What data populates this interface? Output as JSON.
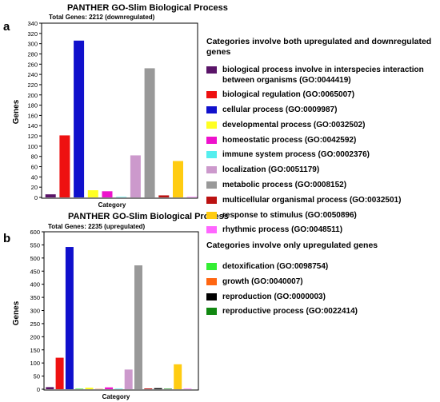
{
  "panel_labels": [
    "a",
    "b"
  ],
  "legend_a": {
    "title": "Categories involve both upregulated and downregulated genes",
    "items": [
      {
        "label": "biological process involve in interspecies interaction between organisms (GO:0044419)",
        "color": "#5a1468"
      },
      {
        "label": "biological regulation (GO:0065007)",
        "color": "#ee1111"
      },
      {
        "label": "cellular process (GO:0009987)",
        "color": "#1010cc"
      },
      {
        "label": "developmental process (GO:0032502)",
        "color": "#ffff22"
      },
      {
        "label": "homeostatic process (GO:0042592)",
        "color": "#ee11cc"
      },
      {
        "label": "immune system process (GO:0002376)",
        "color": "#55eeee"
      },
      {
        "label": "localization (GO:0051179)",
        "color": "#cc99cc"
      },
      {
        "label": "metabolic process (GO:0008152)",
        "color": "#999999"
      },
      {
        "label": "multicellular organismal process (GO:0032501)",
        "color": "#bb1111"
      },
      {
        "label": "response to stimulus (GO:0050896)",
        "color": "#ffcc11"
      },
      {
        "label": "rhythmic process (GO:0048511)",
        "color": "#ff66ff"
      }
    ]
  },
  "legend_b": {
    "title": "Categories involve only upregulated genes",
    "items": [
      {
        "label": "detoxification (GO:0098754)",
        "color": "#33ee33"
      },
      {
        "label": "growth (GO:0040007)",
        "color": "#ff6611"
      },
      {
        "label": "reproduction (GO:0000003)",
        "color": "#000000"
      },
      {
        "label": "reproductive process (GO:0022414)",
        "color": "#118811"
      }
    ]
  },
  "chart_data": [
    {
      "type": "bar",
      "title": "PANTHER GO-Slim Biological Process",
      "subtitle": "Total Genes: 2212 (downregulated)",
      "xlabel": "Category",
      "ylabel": "Genes",
      "ylim": [
        0,
        340
      ],
      "yticks": [
        0,
        20,
        40,
        60,
        80,
        100,
        120,
        140,
        160,
        180,
        200,
        220,
        240,
        260,
        280,
        300,
        320,
        340
      ],
      "legend": "right",
      "categories": [
        "biological process involve in interspecies interaction between organisms (GO:0044419)",
        "biological regulation (GO:0065007)",
        "cellular process (GO:0009987)",
        "developmental process (GO:0032502)",
        "homeostatic process (GO:0042592)",
        "immune system process (GO:0002376)",
        "localization (GO:0051179)",
        "metabolic process (GO:0008152)",
        "multicellular organismal process (GO:0032501)",
        "response to stimulus (GO:0050896)",
        "rhythmic process (GO:0048511)"
      ],
      "values": [
        6,
        121,
        306,
        14,
        12,
        1,
        82,
        252,
        4,
        71,
        1
      ],
      "colors": [
        "#5a1468",
        "#ee1111",
        "#1010cc",
        "#ffff22",
        "#ee11cc",
        "#55eeee",
        "#cc99cc",
        "#999999",
        "#bb1111",
        "#ffcc11",
        "#ff66ff"
      ]
    },
    {
      "type": "bar",
      "title": "PANTHER GO-Slim Biological Process",
      "subtitle": "Total Genes: 2235 (upregulated)",
      "xlabel": "Category",
      "ylabel": "Genes",
      "ylim": [
        0,
        600
      ],
      "yticks": [
        0,
        50,
        100,
        150,
        200,
        250,
        300,
        350,
        400,
        450,
        500,
        550,
        600
      ],
      "legend": "right",
      "categories": [
        "biological process involve in interspecies interaction between organisms (GO:0044419)",
        "biological regulation (GO:0065007)",
        "cellular process (GO:0009987)",
        "detoxification (GO:0098754)",
        "developmental process (GO:0032502)",
        "growth (GO:0040007)",
        "homeostatic process (GO:0042592)",
        "immune system process (GO:0002376)",
        "localization (GO:0051179)",
        "metabolic process (GO:0008152)",
        "multicellular organismal process (GO:0032501)",
        "reproduction (GO:0000003)",
        "reproductive process (GO:0022414)",
        "response to stimulus (GO:0050896)",
        "rhythmic process (GO:0048511)"
      ],
      "values": [
        8,
        120,
        542,
        2,
        6,
        1,
        7,
        2,
        75,
        472,
        3,
        4,
        2,
        95,
        2
      ],
      "colors": [
        "#5a1468",
        "#ee1111",
        "#1010cc",
        "#33ee33",
        "#ffff22",
        "#ff6611",
        "#ee11cc",
        "#55eeee",
        "#cc99cc",
        "#999999",
        "#bb1111",
        "#000000",
        "#118811",
        "#ffcc11",
        "#ff66ff"
      ]
    }
  ]
}
